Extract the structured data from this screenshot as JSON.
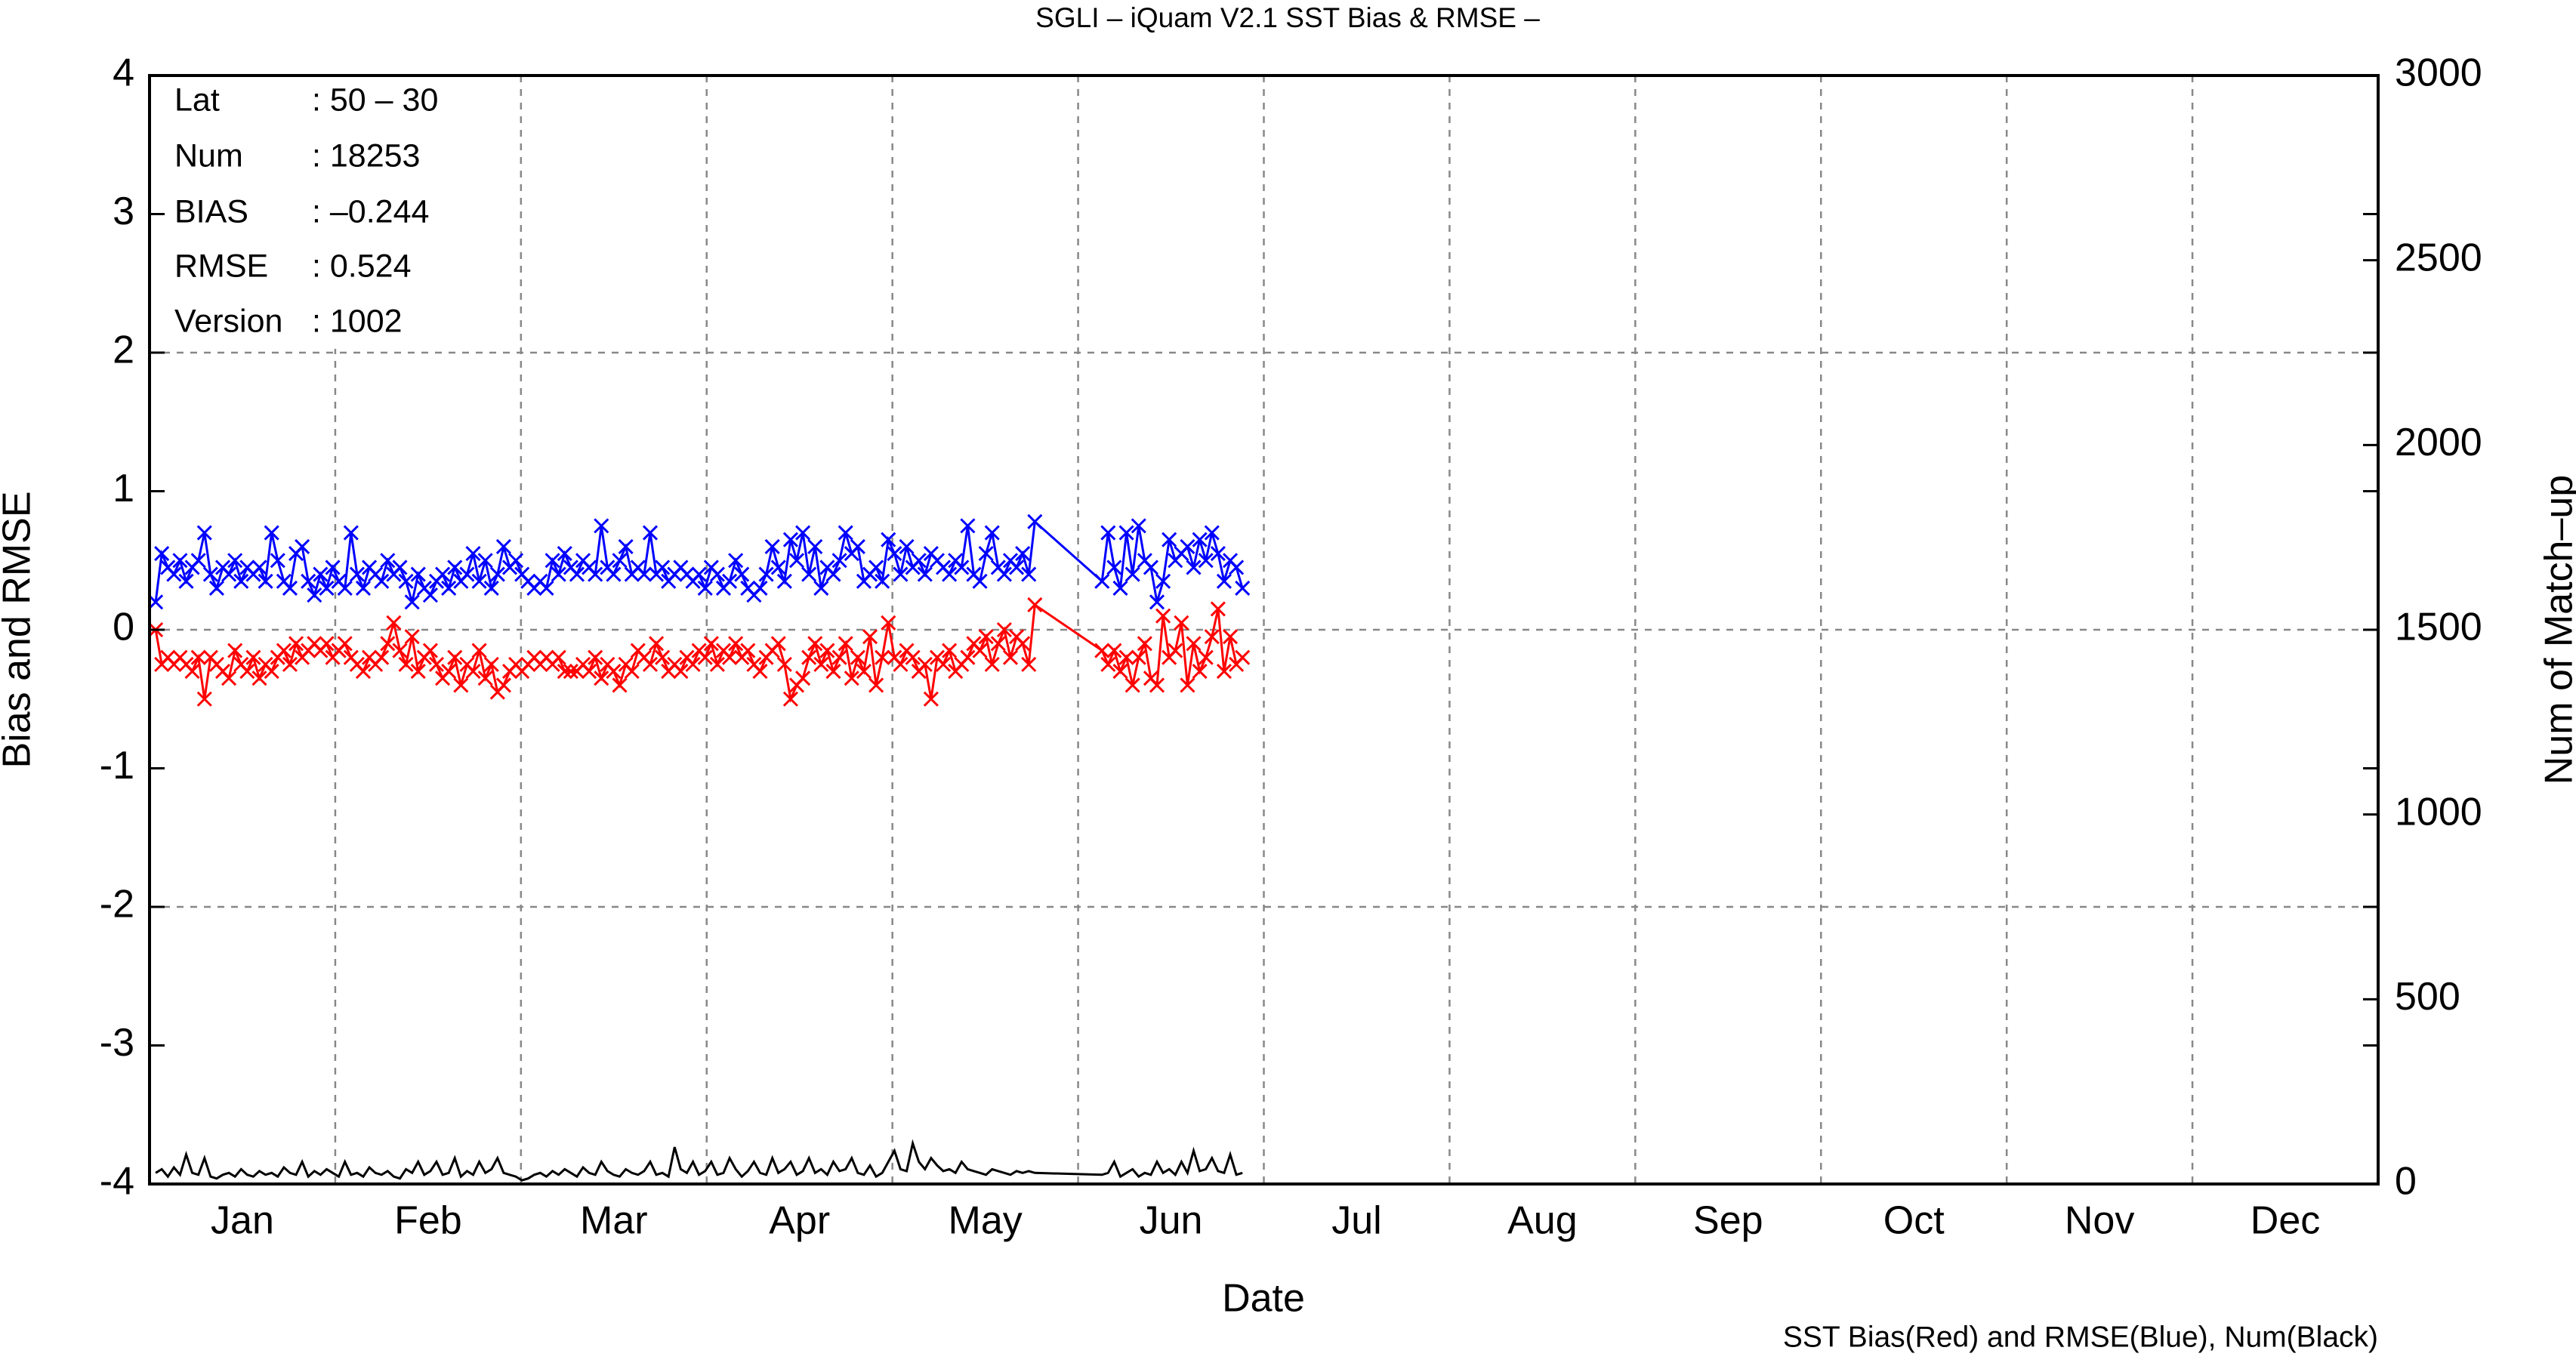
{
  "chart_data": {
    "type": "line",
    "title": "SGLI – iQuam V2.1 SST Bias & RMSE  –",
    "x_label": "Date",
    "y_label": "Bias and RMSE",
    "y2_label": "Num of Match–up",
    "footnote": "SST Bias(Red) and RMSE(Blue), Num(Black)",
    "info": [
      [
        "Lat",
        ": 50 – 30"
      ],
      [
        "Num",
        ": 18253"
      ],
      [
        "BIAS",
        ": –0.244"
      ],
      [
        "RMSE",
        ": 0.524"
      ],
      [
        "Version",
        ": 1002"
      ]
    ],
    "categories": [
      "Jan",
      "Feb",
      "Mar",
      "Apr",
      "May",
      "Jun",
      "Jul",
      "Aug",
      "Sep",
      "Oct",
      "Nov",
      "Dec"
    ],
    "xlim": [
      0,
      365
    ],
    "ylim": [
      -4,
      4
    ],
    "yticks": [
      -4,
      -3,
      -2,
      -1,
      0,
      1,
      2,
      3,
      4
    ],
    "y2lim": [
      0,
      3000
    ],
    "y2ticks": [
      0,
      500,
      1000,
      1500,
      2000,
      2500,
      3000
    ],
    "grid": true,
    "x": [
      1,
      2,
      3,
      4,
      5,
      6,
      7,
      8,
      9,
      10,
      11,
      12,
      13,
      14,
      15,
      16,
      17,
      18,
      19,
      20,
      21,
      22,
      23,
      24,
      25,
      26,
      27,
      28,
      29,
      30,
      31,
      32,
      33,
      34,
      35,
      36,
      37,
      38,
      39,
      40,
      41,
      42,
      43,
      44,
      45,
      46,
      47,
      48,
      49,
      50,
      51,
      52,
      53,
      54,
      55,
      56,
      57,
      58,
      59,
      60,
      61,
      62,
      63,
      64,
      65,
      66,
      67,
      68,
      69,
      70,
      71,
      72,
      73,
      74,
      75,
      76,
      77,
      78,
      79,
      80,
      81,
      82,
      83,
      84,
      85,
      86,
      87,
      88,
      89,
      90,
      91,
      92,
      93,
      94,
      95,
      96,
      97,
      98,
      99,
      100,
      101,
      102,
      103,
      104,
      105,
      106,
      107,
      108,
      109,
      110,
      111,
      112,
      113,
      114,
      115,
      116,
      117,
      118,
      119,
      120,
      121,
      122,
      123,
      124,
      125,
      126,
      127,
      128,
      129,
      130,
      131,
      132,
      133,
      134,
      135,
      136,
      137,
      138,
      139,
      140,
      141,
      142,
      143,
      144,
      145,
      156,
      157,
      158,
      159,
      160,
      161,
      162,
      163,
      164,
      165,
      166,
      167,
      168,
      169,
      170,
      171,
      172,
      173,
      174,
      175,
      176,
      177,
      178,
      179
    ],
    "series": [
      {
        "name": "RMSE",
        "color": "#0000ff",
        "marker": true,
        "values": [
          0.2,
          0.55,
          0.45,
          0.4,
          0.5,
          0.35,
          0.45,
          0.5,
          0.7,
          0.4,
          0.3,
          0.45,
          0.4,
          0.5,
          0.35,
          0.45,
          0.4,
          0.45,
          0.35,
          0.7,
          0.5,
          0.35,
          0.3,
          0.55,
          0.6,
          0.35,
          0.25,
          0.4,
          0.3,
          0.45,
          0.35,
          0.3,
          0.7,
          0.4,
          0.3,
          0.45,
          0.4,
          0.35,
          0.5,
          0.4,
          0.45,
          0.35,
          0.2,
          0.4,
          0.3,
          0.25,
          0.35,
          0.4,
          0.3,
          0.45,
          0.35,
          0.4,
          0.55,
          0.35,
          0.5,
          0.3,
          0.4,
          0.6,
          0.45,
          0.5,
          0.4,
          0.35,
          0.3,
          0.35,
          0.3,
          0.5,
          0.4,
          0.55,
          0.45,
          0.4,
          0.5,
          0.45,
          0.4,
          0.75,
          0.45,
          0.4,
          0.5,
          0.6,
          0.4,
          0.45,
          0.4,
          0.7,
          0.4,
          0.45,
          0.35,
          0.4,
          0.45,
          0.4,
          0.35,
          0.4,
          0.3,
          0.45,
          0.4,
          0.3,
          0.35,
          0.5,
          0.4,
          0.3,
          0.25,
          0.3,
          0.4,
          0.6,
          0.45,
          0.35,
          0.65,
          0.5,
          0.7,
          0.4,
          0.6,
          0.3,
          0.45,
          0.4,
          0.5,
          0.7,
          0.55,
          0.6,
          0.35,
          0.4,
          0.45,
          0.35,
          0.65,
          0.55,
          0.4,
          0.6,
          0.45,
          0.5,
          0.4,
          0.55,
          0.5,
          0.45,
          0.4,
          0.5,
          0.45,
          0.75,
          0.4,
          0.35,
          0.55,
          0.7,
          0.45,
          0.4,
          0.5,
          0.45,
          0.55,
          0.4,
          0.78,
          0.35,
          0.7,
          0.45,
          0.3,
          0.7,
          0.4,
          0.75,
          0.5,
          0.45,
          0.2,
          0.35,
          0.65,
          0.5,
          0.55,
          0.6,
          0.45,
          0.65,
          0.5,
          0.7,
          0.55,
          0.35,
          0.5,
          0.45,
          0.3
        ]
      },
      {
        "name": "Bias",
        "color": "#ff0000",
        "marker": true,
        "values": [
          0.0,
          -0.25,
          -0.2,
          -0.25,
          -0.2,
          -0.25,
          -0.3,
          -0.2,
          -0.5,
          -0.2,
          -0.25,
          -0.3,
          -0.35,
          -0.15,
          -0.25,
          -0.3,
          -0.2,
          -0.35,
          -0.25,
          -0.3,
          -0.2,
          -0.15,
          -0.25,
          -0.1,
          -0.2,
          -0.15,
          -0.1,
          -0.15,
          -0.1,
          -0.2,
          -0.15,
          -0.1,
          -0.2,
          -0.25,
          -0.3,
          -0.2,
          -0.25,
          -0.2,
          -0.1,
          0.05,
          -0.15,
          -0.25,
          -0.05,
          -0.3,
          -0.2,
          -0.15,
          -0.25,
          -0.35,
          -0.3,
          -0.2,
          -0.4,
          -0.25,
          -0.3,
          -0.15,
          -0.35,
          -0.25,
          -0.45,
          -0.4,
          -0.3,
          -0.25,
          -0.3,
          -0.25,
          -0.2,
          -0.25,
          -0.2,
          -0.25,
          -0.2,
          -0.3,
          -0.3,
          -0.3,
          -0.25,
          -0.3,
          -0.2,
          -0.35,
          -0.25,
          -0.3,
          -0.4,
          -0.25,
          -0.3,
          -0.15,
          -0.2,
          -0.25,
          -0.1,
          -0.2,
          -0.3,
          -0.25,
          -0.3,
          -0.2,
          -0.25,
          -0.15,
          -0.2,
          -0.1,
          -0.25,
          -0.15,
          -0.2,
          -0.1,
          -0.2,
          -0.15,
          -0.25,
          -0.3,
          -0.2,
          -0.15,
          -0.1,
          -0.25,
          -0.5,
          -0.4,
          -0.35,
          -0.2,
          -0.1,
          -0.25,
          -0.15,
          -0.3,
          -0.2,
          -0.1,
          -0.35,
          -0.2,
          -0.3,
          -0.05,
          -0.4,
          -0.2,
          0.05,
          -0.2,
          -0.25,
          -0.15,
          -0.2,
          -0.3,
          -0.25,
          -0.5,
          -0.2,
          -0.25,
          -0.15,
          -0.3,
          -0.25,
          -0.2,
          -0.1,
          -0.15,
          -0.05,
          -0.25,
          -0.1,
          0.0,
          -0.2,
          -0.05,
          -0.1,
          -0.25,
          0.18,
          -0.15,
          -0.25,
          -0.15,
          -0.3,
          -0.2,
          -0.4,
          -0.2,
          -0.1,
          -0.35,
          -0.4,
          0.1,
          -0.2,
          -0.15,
          0.05,
          -0.4,
          -0.1,
          -0.3,
          -0.2,
          -0.05,
          0.15,
          -0.3,
          -0.05,
          -0.25,
          -0.2
        ]
      },
      {
        "name": "Num",
        "color": "#000000",
        "marker": false,
        "axis": "y2",
        "values": [
          30,
          40,
          20,
          45,
          25,
          80,
          30,
          25,
          70,
          20,
          15,
          25,
          30,
          20,
          40,
          25,
          20,
          35,
          25,
          30,
          20,
          45,
          30,
          25,
          60,
          20,
          35,
          25,
          40,
          30,
          20,
          60,
          25,
          30,
          20,
          45,
          30,
          25,
          35,
          20,
          15,
          40,
          30,
          60,
          25,
          35,
          60,
          25,
          30,
          70,
          20,
          35,
          25,
          60,
          30,
          40,
          70,
          30,
          25,
          20,
          10,
          15,
          25,
          30,
          20,
          35,
          25,
          40,
          30,
          20,
          45,
          30,
          25,
          60,
          35,
          25,
          20,
          40,
          30,
          25,
          35,
          60,
          25,
          30,
          20,
          100,
          40,
          30,
          60,
          25,
          35,
          60,
          25,
          30,
          70,
          40,
          20,
          35,
          60,
          30,
          25,
          70,
          30,
          40,
          60,
          25,
          35,
          70,
          30,
          40,
          25,
          60,
          35,
          40,
          70,
          30,
          25,
          50,
          20,
          30,
          60,
          90,
          40,
          35,
          110,
          60,
          40,
          70,
          50,
          35,
          40,
          30,
          60,
          40,
          35,
          30,
          25,
          40,
          35,
          30,
          25,
          35,
          30,
          35,
          30,
          25,
          30,
          60,
          20,
          30,
          40,
          20,
          30,
          25,
          60,
          30,
          40,
          25,
          60,
          30,
          90,
          35,
          40,
          70,
          35,
          30,
          80,
          25,
          30
        ]
      }
    ]
  }
}
